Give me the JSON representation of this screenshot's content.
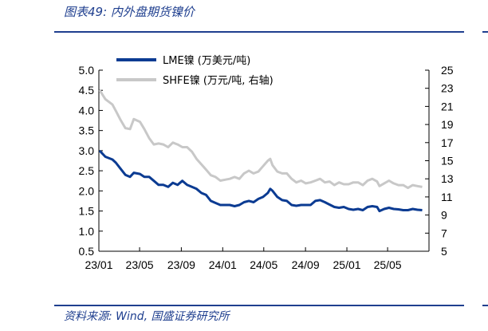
{
  "header": {
    "title": "图表49:  内外盘期货镍价"
  },
  "footer": {
    "source": "资料来源: Wind, 国盛证券研究所"
  },
  "colors": {
    "accent": "#1f3f8f",
    "lme": "#0b3b92",
    "shfe": "#c8c8c8"
  },
  "chart_data": {
    "type": "line",
    "title": "",
    "xlabel": "",
    "ylabel": "",
    "x_ticks": [
      "23/01",
      "23/05",
      "23/09",
      "24/01",
      "24/05",
      "24/09",
      "25/01",
      "25/05"
    ],
    "y_left": {
      "min": 0.5,
      "max": 5.0,
      "ticks": [
        "5.0",
        "4.5",
        "4.0",
        "3.5",
        "3.0",
        "2.5",
        "2.0",
        "1.5",
        "1.0",
        "0.5"
      ]
    },
    "y_right": {
      "min": 5,
      "max": 25,
      "ticks": [
        "25",
        "23",
        "21",
        "19",
        "17",
        "15",
        "13",
        "11",
        "9",
        "7",
        "5"
      ]
    },
    "grid": false,
    "legend_position": "top-left",
    "series": [
      {
        "name": "LME镍 (万美元/吨)",
        "axis": "left",
        "x": [
          "2023-01-03",
          "2023-01-20",
          "2023-02-10",
          "2023-02-20",
          "2023-03-06",
          "2023-03-20",
          "2023-04-03",
          "2023-04-14",
          "2023-05-02",
          "2023-05-15",
          "2023-05-29",
          "2023-06-12",
          "2023-06-26",
          "2023-07-10",
          "2023-07-24",
          "2023-08-07",
          "2023-08-21",
          "2023-09-04",
          "2023-09-18",
          "2023-10-02",
          "2023-10-16",
          "2023-10-30",
          "2023-11-13",
          "2023-11-27",
          "2023-12-11",
          "2023-12-25",
          "2024-01-08",
          "2024-01-22",
          "2024-02-05",
          "2024-02-19",
          "2024-03-04",
          "2024-03-18",
          "2024-04-01",
          "2024-04-15",
          "2024-04-29",
          "2024-05-13",
          "2024-05-20",
          "2024-05-27",
          "2024-06-10",
          "2024-06-24",
          "2024-07-08",
          "2024-07-22",
          "2024-08-05",
          "2024-08-19",
          "2024-09-02",
          "2024-09-16",
          "2024-09-30",
          "2024-10-14",
          "2024-10-28",
          "2024-11-11",
          "2024-11-25",
          "2024-12-09",
          "2024-12-23",
          "2025-01-06",
          "2025-01-20",
          "2025-02-03",
          "2025-02-17",
          "2025-03-03",
          "2025-03-17",
          "2025-03-31",
          "2025-04-07",
          "2025-04-21",
          "2025-05-05",
          "2025-05-19",
          "2025-06-02",
          "2025-06-16",
          "2025-06-30",
          "2025-07-14",
          "2025-07-28",
          "2025-08-11"
        ],
        "y": [
          3.0,
          2.85,
          2.78,
          2.7,
          2.55,
          2.4,
          2.35,
          2.45,
          2.42,
          2.35,
          2.35,
          2.25,
          2.15,
          2.15,
          2.1,
          2.2,
          2.15,
          2.25,
          2.15,
          2.1,
          2.05,
          1.95,
          1.9,
          1.75,
          1.7,
          1.65,
          1.65,
          1.65,
          1.62,
          1.65,
          1.72,
          1.75,
          1.72,
          1.8,
          1.85,
          1.95,
          2.05,
          2.0,
          1.85,
          1.77,
          1.75,
          1.65,
          1.63,
          1.65,
          1.65,
          1.65,
          1.75,
          1.77,
          1.72,
          1.66,
          1.6,
          1.58,
          1.6,
          1.55,
          1.53,
          1.55,
          1.52,
          1.6,
          1.62,
          1.6,
          1.5,
          1.55,
          1.58,
          1.55,
          1.54,
          1.52,
          1.52,
          1.55,
          1.53,
          1.52
        ]
      },
      {
        "name": "SHFE镍 (万元/吨, 右轴)",
        "axis": "right",
        "x": [
          "2023-01-03",
          "2023-01-20",
          "2023-02-10",
          "2023-02-20",
          "2023-03-06",
          "2023-03-20",
          "2023-04-03",
          "2023-04-14",
          "2023-05-02",
          "2023-05-15",
          "2023-05-29",
          "2023-06-12",
          "2023-06-26",
          "2023-07-10",
          "2023-07-24",
          "2023-08-07",
          "2023-08-21",
          "2023-09-04",
          "2023-09-18",
          "2023-10-02",
          "2023-10-16",
          "2023-10-30",
          "2023-11-13",
          "2023-11-27",
          "2023-12-11",
          "2023-12-25",
          "2024-01-08",
          "2024-01-22",
          "2024-02-05",
          "2024-02-19",
          "2024-03-04",
          "2024-03-18",
          "2024-04-01",
          "2024-04-15",
          "2024-04-29",
          "2024-05-13",
          "2024-05-20",
          "2024-05-27",
          "2024-06-10",
          "2024-06-24",
          "2024-07-08",
          "2024-07-22",
          "2024-08-05",
          "2024-08-19",
          "2024-09-02",
          "2024-09-16",
          "2024-09-30",
          "2024-10-14",
          "2024-10-28",
          "2024-11-11",
          "2024-11-25",
          "2024-12-09",
          "2024-12-23",
          "2025-01-06",
          "2025-01-20",
          "2025-02-03",
          "2025-02-17",
          "2025-03-03",
          "2025-03-17",
          "2025-03-31",
          "2025-04-07",
          "2025-04-21",
          "2025-05-05",
          "2025-05-19",
          "2025-06-02",
          "2025-06-16",
          "2025-06-30",
          "2025-07-14",
          "2025-07-28",
          "2025-08-11"
        ],
        "y": [
          22.8,
          21.8,
          21.2,
          20.5,
          19.5,
          18.6,
          18.5,
          19.6,
          19.3,
          18.5,
          17.5,
          16.8,
          16.9,
          16.8,
          16.5,
          17.0,
          16.8,
          16.5,
          16.5,
          16.0,
          15.2,
          14.6,
          14.0,
          13.4,
          13.2,
          12.8,
          12.9,
          13.0,
          13.2,
          13.0,
          13.6,
          13.9,
          13.6,
          13.8,
          14.4,
          15.0,
          15.2,
          14.5,
          13.8,
          13.6,
          13.6,
          13.0,
          12.6,
          12.8,
          12.5,
          12.6,
          12.8,
          13.0,
          12.6,
          12.7,
          12.3,
          12.6,
          12.4,
          12.4,
          12.6,
          12.6,
          12.3,
          12.8,
          13.0,
          12.7,
          12.2,
          12.5,
          12.8,
          12.5,
          12.3,
          12.3,
          12.0,
          12.3,
          12.2,
          12.1
        ]
      }
    ]
  }
}
